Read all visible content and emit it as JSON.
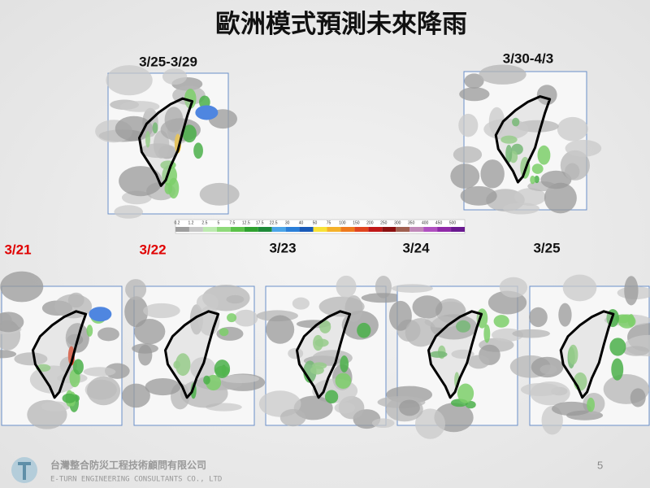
{
  "title": "歐洲模式預測未來降雨",
  "periods": [
    {
      "label": "3/25-3/29"
    },
    {
      "label": "3/30-4/3"
    }
  ],
  "colorbar": {
    "labels": [
      0.2,
      1.2,
      2.5,
      5,
      7.5,
      12.5,
      17.5,
      22.5,
      30,
      40,
      50,
      75,
      100,
      150,
      200,
      250,
      300,
      350,
      400,
      450,
      500
    ]
  },
  "days": [
    {
      "label": "3/21"
    },
    {
      "label": "3/22"
    },
    {
      "label": "3/23"
    },
    {
      "label": "3/24"
    },
    {
      "label": "3/25"
    }
  ],
  "footer": {
    "company": "台灣整合防災工程技術顧問有限公司",
    "company_en": "E-TURN ENGINEERING CONSULTANTS CO., LTD",
    "page": "5"
  }
}
